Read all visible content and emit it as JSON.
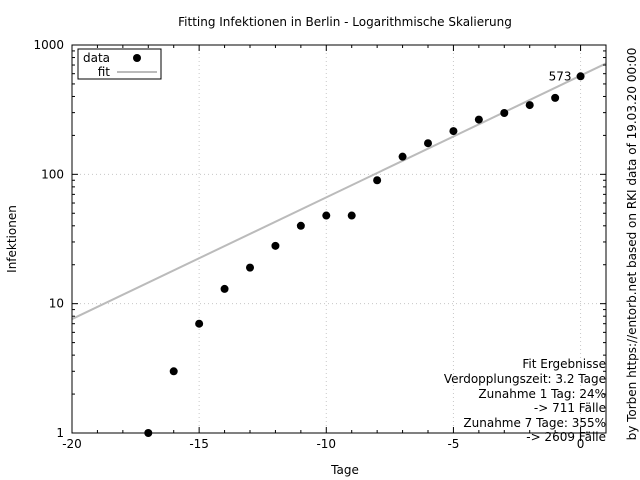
{
  "chart_data": {
    "type": "scatter",
    "title": "Fitting Infektionen in Berlin - Logarithmische Skalierung",
    "xlabel": "Tage",
    "ylabel": "Infektionen",
    "side_label": "by Torben https://entorb.net based on RKI data of 19.03.20 00:00",
    "xlim": [
      -20,
      1
    ],
    "ylim": [
      1,
      1000
    ],
    "yscale": "log",
    "grid": true,
    "legend_position": "top-left",
    "x_ticks": [
      -20,
      -15,
      -10,
      -5,
      0
    ],
    "x_tick_labels": [
      "-20",
      "-15",
      "-10",
      "-5",
      "0"
    ],
    "y_ticks": [
      1,
      10,
      100,
      1000
    ],
    "y_tick_labels": [
      "1",
      "10",
      "100",
      "1000"
    ],
    "series": [
      {
        "name": "data",
        "kind": "points",
        "color": "#000000",
        "x": [
          -17,
          -16,
          -15,
          -14,
          -13,
          -12,
          -11,
          -10,
          -9,
          -8,
          -7,
          -6,
          -5,
          -4,
          -3,
          -2,
          -1,
          0
        ],
        "y": [
          1,
          3,
          7,
          13,
          19,
          28,
          40,
          48,
          48,
          90,
          137,
          174,
          216,
          265,
          298,
          343,
          390,
          573
        ]
      },
      {
        "name": "fit",
        "kind": "line",
        "color": "#bbbbbb",
        "x": [
          -20,
          1
        ],
        "y": [
          7.6,
          720
        ]
      }
    ],
    "annotations": [
      {
        "x": 0,
        "y": 573,
        "text": "573"
      }
    ],
    "fit_results": {
      "heading": "Fit Ergebnisse",
      "lines": [
        "Verdopplungszeit: 3.2 Tage",
        "Zunahme 1 Tag: 24%",
        "-> 711 Fälle",
        "Zunahme 7 Tage: 355%",
        "-> 2609 Fälle"
      ]
    }
  }
}
